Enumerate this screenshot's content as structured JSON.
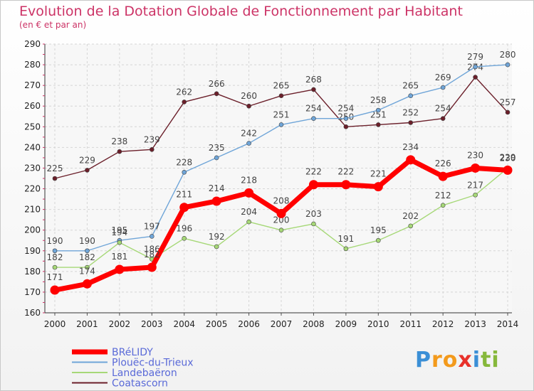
{
  "header": {
    "title": "Evolution de la Dotation Globale de Fonctionnement par Habitant",
    "subtitle": "(en € et par an)"
  },
  "logo": {
    "letters": [
      "P",
      "r",
      "o",
      "x",
      "i",
      "t",
      "i"
    ],
    "colors": [
      "#3b8fd6",
      "#f39a1c",
      "#f39a1c",
      "#e8312a",
      "#3b8fd6",
      "#86b83b",
      "#86b83b"
    ]
  },
  "chart_data": {
    "type": "line",
    "title": "Evolution de la Dotation Globale de Fonctionnement par Habitant",
    "subtitle": "(en € et par an)",
    "x": [
      "2000",
      "2001",
      "2002",
      "2003",
      "2004",
      "2005",
      "2006",
      "2007",
      "2008",
      "2009",
      "2010",
      "2011",
      "2012",
      "2013",
      "2014"
    ],
    "ylim": [
      160,
      290
    ],
    "yticks": [
      160,
      170,
      180,
      190,
      200,
      210,
      220,
      230,
      240,
      250,
      260,
      270,
      280,
      290
    ],
    "grid": true,
    "legend_position": "bottom-left",
    "series": [
      {
        "name": "Coatascorn",
        "color": "#6b1f2a",
        "values": [
          225,
          229,
          238,
          239,
          262,
          266,
          260,
          265,
          268,
          250,
          251,
          252,
          254,
          274,
          257
        ]
      },
      {
        "name": "Plouëc-du-Trieux",
        "color": "#6fa5d8",
        "values": [
          190,
          190,
          195,
          197,
          228,
          235,
          242,
          251,
          254,
          254,
          258,
          265,
          269,
          279,
          280
        ]
      },
      {
        "name": "Landebaëron",
        "color": "#a6d877",
        "values": [
          182,
          182,
          194,
          186,
          196,
          192,
          204,
          200,
          203,
          191,
          195,
          202,
          212,
          217,
          230
        ]
      },
      {
        "name": "BRéLIDY",
        "color": "#ff0000",
        "values": [
          171,
          174,
          181,
          182,
          211,
          214,
          218,
          208,
          222,
          222,
          221,
          234,
          226,
          230,
          229
        ]
      }
    ],
    "legend_order": [
      "BRéLIDY",
      "Plouëc-du-Trieux",
      "Landebaëron",
      "Coatascorn"
    ]
  }
}
